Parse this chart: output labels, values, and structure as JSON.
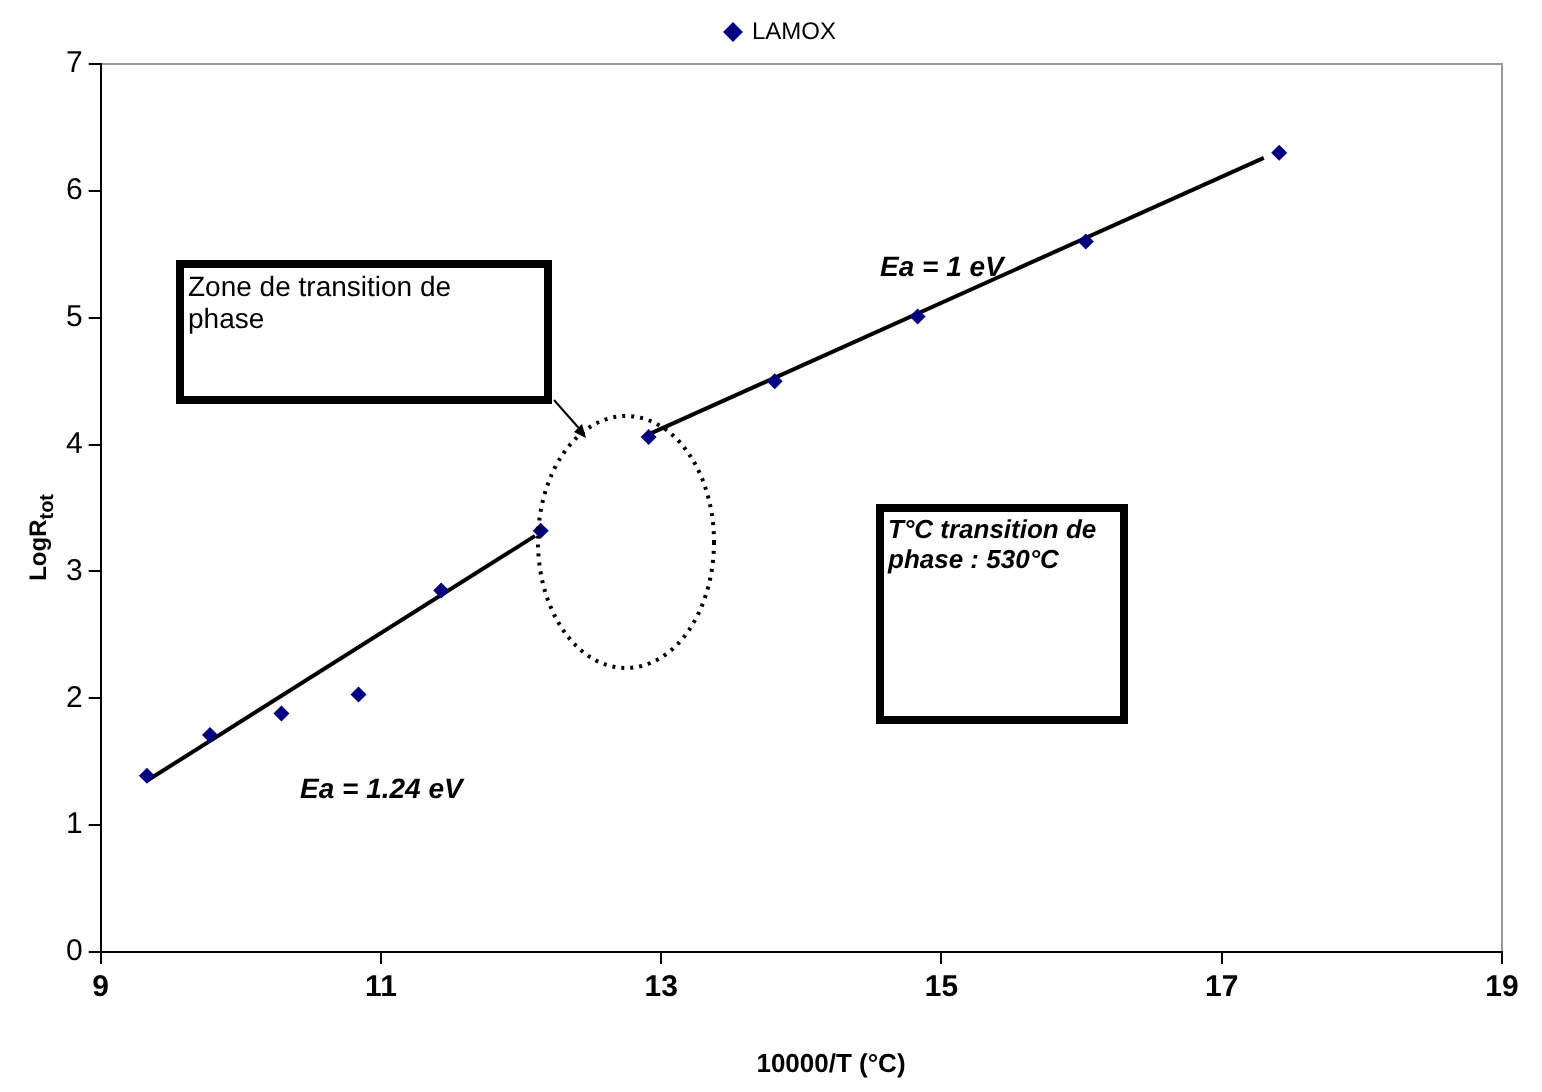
{
  "chart_data": {
    "type": "scatter",
    "xlabel": "10000/T (°C)",
    "ylabel": "LogR$_{tot}$",
    "xlim": [
      9,
      19
    ],
    "xticks": [
      9,
      11,
      13,
      15,
      17,
      19
    ],
    "ylim": [
      0,
      7
    ],
    "yticks": [
      0,
      1,
      2,
      3,
      4,
      5,
      6,
      7
    ],
    "grid": false,
    "legend": "top",
    "marker": "diamond",
    "series": [
      {
        "name": "LAMOX",
        "color": "#000080",
        "x": [
          9.33,
          9.78,
          10.29,
          10.84,
          11.43,
          12.14,
          12.91,
          13.81,
          14.83,
          16.03,
          17.41
        ],
        "values": [
          1.39,
          1.71,
          1.88,
          2.03,
          2.85,
          3.32,
          4.06,
          4.5,
          5.01,
          5.6,
          6.3
        ]
      },
      {
        "type": "line",
        "color": "#000000",
        "marker": "none",
        "x": [
          9.33,
          12.1
        ],
        "values": [
          1.35,
          3.28
        ]
      },
      {
        "type": "line",
        "color": "#000000",
        "marker": "none",
        "x": [
          12.91,
          17.3
        ],
        "values": [
          4.08,
          6.26
        ]
      }
    ],
    "annotations": [
      "Zone de transition de phase",
      "Ea = 1 eV",
      "Ea = 1.24 eV",
      "T°C transition de phase : 530°C"
    ]
  }
}
